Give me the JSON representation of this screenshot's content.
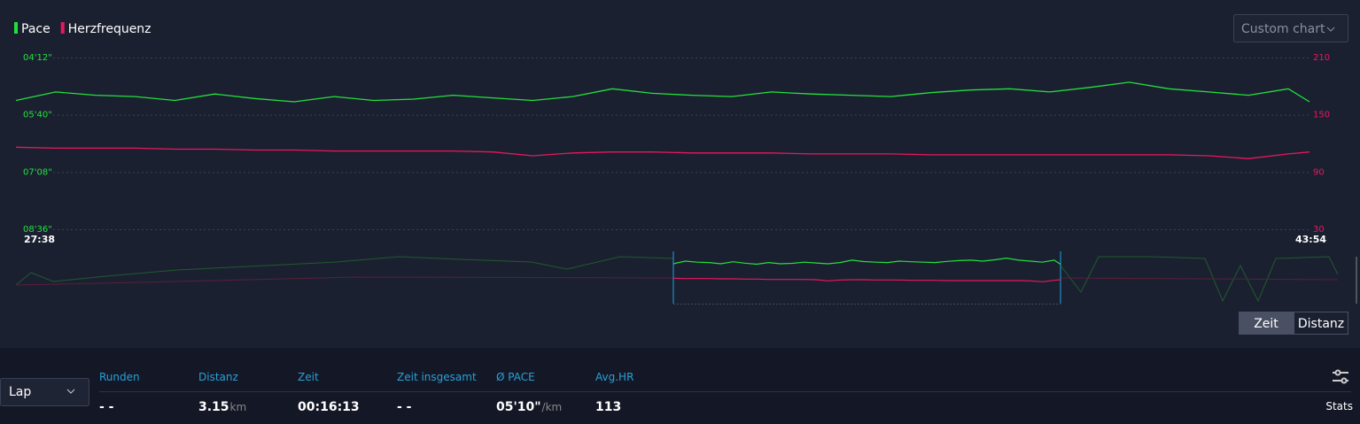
{
  "chart_data": {
    "type": "line",
    "x": [
      1658,
      1688,
      1718,
      1748,
      1778,
      1808,
      1838,
      1868,
      1898,
      1928,
      1958,
      1988,
      2018,
      2048,
      2078,
      2108,
      2138,
      2168,
      2198,
      2228,
      2258,
      2288,
      2318,
      2348,
      2378,
      2408,
      2438,
      2468,
      2498,
      2528,
      2558,
      2588,
      2618,
      2634
    ],
    "xlim": [
      1658,
      2634
    ],
    "xticks": [
      {
        "value": 1658,
        "label": "27:38"
      },
      {
        "value": 2634,
        "label": "43:54"
      }
    ],
    "series": [
      {
        "name": "Pace",
        "color": "#22e03c",
        "axis": "y",
        "values": [
          318,
          305,
          310,
          312,
          318,
          308,
          315,
          320,
          312,
          318,
          316,
          310,
          314,
          318,
          312,
          300,
          307,
          310,
          312,
          305,
          308,
          310,
          312,
          306,
          302,
          300,
          305,
          298,
          290,
          300,
          305,
          310,
          300,
          320
        ]
      },
      {
        "name": "Herzfrequenz",
        "color": "#e8175d",
        "axis": "y2",
        "values": [
          116,
          115,
          115,
          115,
          114,
          114,
          113,
          113,
          112,
          112,
          112,
          112,
          111,
          107,
          110,
          111,
          111,
          110,
          110,
          110,
          109,
          109,
          109,
          108,
          108,
          108,
          108,
          108,
          108,
          108,
          107,
          104,
          109,
          111
        ]
      }
    ],
    "ylim": [
      252,
      516
    ],
    "y_inverted": true,
    "yticks": [
      {
        "value": 252,
        "label": "04'12\""
      },
      {
        "value": 340,
        "label": "05'40\""
      },
      {
        "value": 428,
        "label": "07'08\""
      },
      {
        "value": 516,
        "label": "08'36\""
      }
    ],
    "y2lim": [
      30,
      210
    ],
    "y2ticks": [
      30,
      90,
      150,
      210
    ],
    "grid": true
  },
  "controls": {
    "chart_select": "Custom chart",
    "zeit": "Zeit",
    "distanz": "Distanz",
    "lap": "Lap",
    "stats": "Stats"
  },
  "table": {
    "headers": [
      "Runden",
      "Distanz",
      "Zeit",
      "Zeit insgesamt",
      "Ø PACE",
      "Avg.HR"
    ],
    "row": [
      {
        "value": "- -"
      },
      {
        "value": "3.15",
        "unit": "km"
      },
      {
        "value": "00:16:13"
      },
      {
        "value": "- -"
      },
      {
        "value": "05'10\"",
        "unit": "/km"
      },
      {
        "value": "113"
      }
    ]
  }
}
